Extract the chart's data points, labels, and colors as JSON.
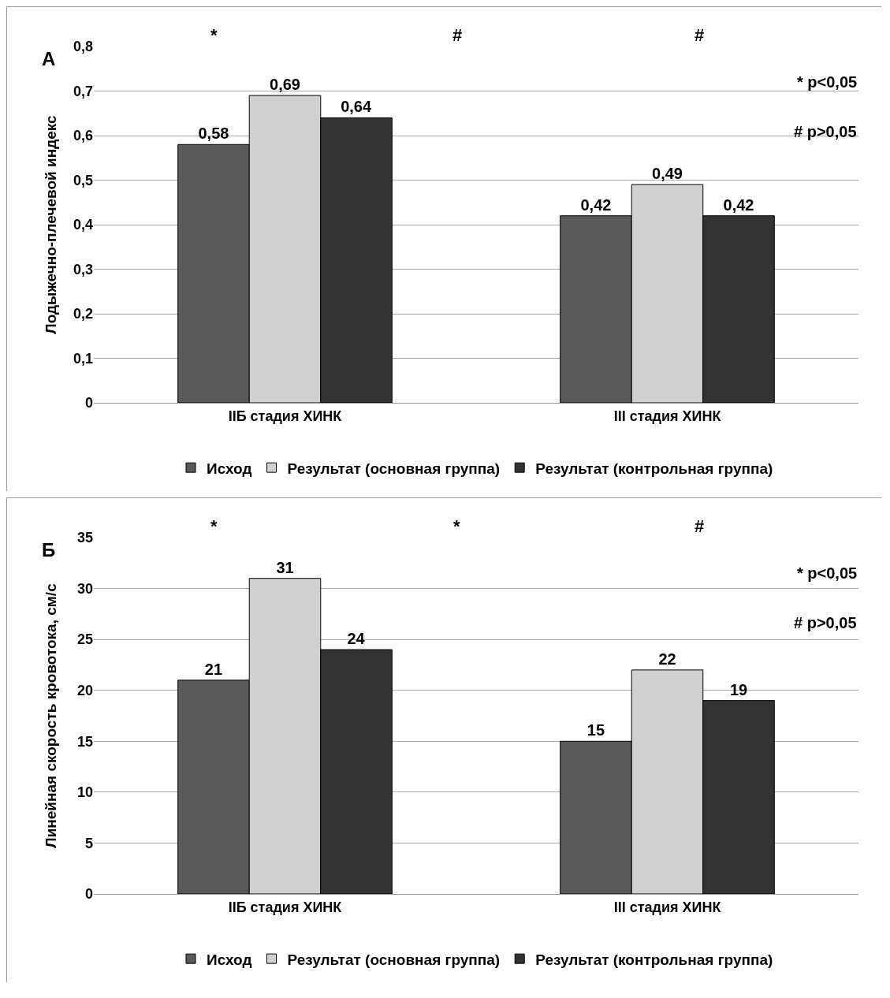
{
  "chart_data": [
    {
      "type": "bar",
      "title": "А",
      "ylabel": "Лодыжечно-плечевой индекс",
      "categories": [
        "IIБ стадия ХИНК",
        "III стадия ХИНК"
      ],
      "series": [
        {
          "name": "Исход",
          "color": "#595959",
          "values": [
            0.58,
            0.42
          ]
        },
        {
          "name": "Результат (основная группа)",
          "color": "#d0d0d0",
          "values": [
            0.69,
            0.49
          ]
        },
        {
          "name": "Результат (контрольная группа)",
          "color": "#333333",
          "values": [
            0.64,
            0.42
          ]
        }
      ],
      "ylim": [
        0,
        0.8
      ],
      "yticks": [
        0,
        {
          "value": 0.1,
          "label": "0,1"
        },
        {
          "value": 0.2,
          "label": "0,2"
        },
        {
          "value": 0.3,
          "label": "0,3"
        },
        {
          "value": 0.4,
          "label": "0,4"
        },
        {
          "value": 0.5,
          "label": "0,5"
        },
        {
          "value": 0.6,
          "label": "0,6"
        },
        {
          "value": 0.7,
          "label": "0,7"
        },
        {
          "value": 0.8,
          "label": "0,8"
        }
      ],
      "value_labels": [
        [
          "0,58",
          "0,42"
        ],
        [
          "0,69",
          "0,49"
        ],
        [
          "0,64",
          "0,42"
        ]
      ],
      "annotations": [
        "*",
        "#",
        "#",
        "* p<0,05",
        "# p>0,05"
      ],
      "grid": "y",
      "legend": "bottom"
    },
    {
      "type": "bar",
      "title": "Б",
      "ylabel": "Линейная скорость кровотока, см/с",
      "categories": [
        "IIБ стадия ХИНК",
        "III стадия ХИНК"
      ],
      "series": [
        {
          "name": "Исход",
          "color": "#595959",
          "values": [
            21,
            15
          ]
        },
        {
          "name": "Результат (основная группа)",
          "color": "#d0d0d0",
          "values": [
            31,
            22
          ]
        },
        {
          "name": "Результат (контрольная группа)",
          "color": "#333333",
          "values": [
            24,
            19
          ]
        }
      ],
      "ylim": [
        0,
        35
      ],
      "yticks": [
        0,
        5,
        10,
        15,
        20,
        25,
        30,
        35
      ],
      "data_labels": true,
      "annotations": [
        "*",
        "*",
        "#",
        "* p<0,05",
        "# p>0,05"
      ],
      "grid": "y",
      "legend": "bottom"
    }
  ]
}
